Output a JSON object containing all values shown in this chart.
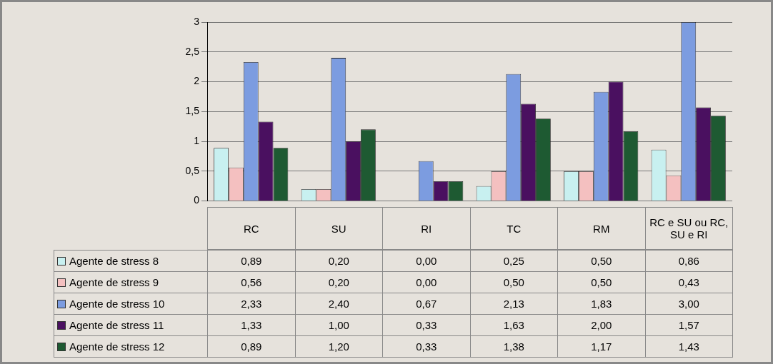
{
  "chart_data": {
    "type": "bar",
    "categories": [
      "RC",
      "SU",
      "RI",
      "TC",
      "RM",
      "RC e SU ou RC, SU e RI"
    ],
    "series": [
      {
        "name": "Agente de stress 8",
        "color": "#c8f0f0",
        "values": [
          0.89,
          0.2,
          0,
          0.25,
          0.5,
          0.86
        ],
        "value_labels": [
          "0,89",
          "0,20",
          "0,00",
          "0,25",
          "0,50",
          "0,86"
        ]
      },
      {
        "name": "Agente de stress 9",
        "color": "#f4c0c0",
        "values": [
          0.56,
          0.2,
          0,
          0.5,
          0.5,
          0.43
        ],
        "value_labels": [
          "0,56",
          "0,20",
          "0,00",
          "0,50",
          "0,50",
          "0,43"
        ]
      },
      {
        "name": "Agente de stress 10",
        "color": "#7c9ce0",
        "values": [
          2.33,
          2.4,
          0.67,
          2.13,
          1.83,
          3
        ],
        "value_labels": [
          "2,33",
          "2,40",
          "0,67",
          "2,13",
          "1,83",
          "3,00"
        ]
      },
      {
        "name": "Agente de stress 11",
        "color": "#4a1060",
        "values": [
          1.33,
          1,
          0.33,
          1.63,
          2,
          1.57
        ],
        "value_labels": [
          "1,33",
          "1,00",
          "0,33",
          "1,63",
          "2,00",
          "1,57"
        ]
      },
      {
        "name": "Agente de stress 12",
        "color": "#1e5a32",
        "values": [
          0.89,
          1.2,
          0.33,
          1.38,
          1.17,
          1.43
        ],
        "value_labels": [
          "0,89",
          "1,20",
          "0,33",
          "1,38",
          "1,17",
          "1,43"
        ]
      }
    ],
    "ylim": [
      0,
      3
    ],
    "yticks": [
      0,
      {
        "value": 0.5,
        "label": "0,5"
      },
      1,
      {
        "value": 1.5,
        "label": "1,5"
      },
      2,
      {
        "value": 2.5,
        "label": "2,5"
      },
      3
    ],
    "grid": "y",
    "legend": "bottom"
  }
}
